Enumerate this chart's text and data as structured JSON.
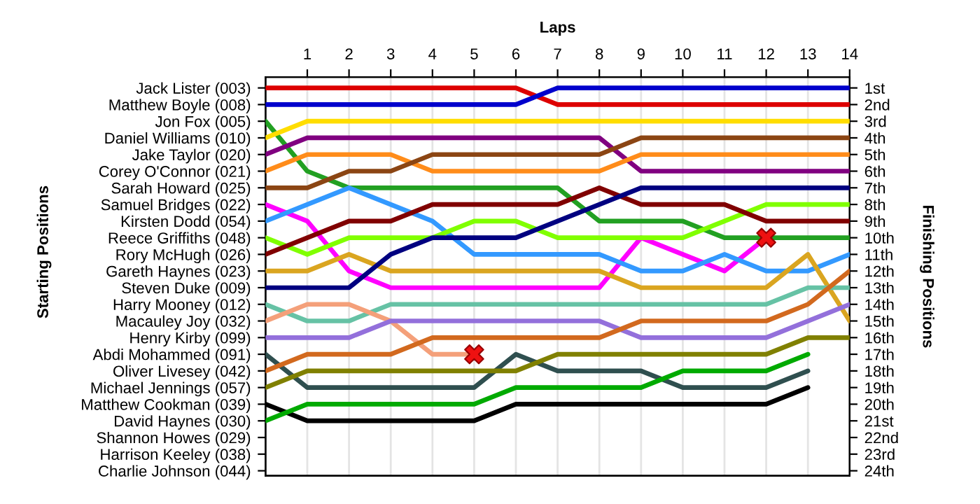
{
  "chart_data": {
    "type": "line",
    "xlabel": "Laps",
    "annotations": [
      "Starting Positions"
    ],
    "y2label": "Finishing Positions",
    "x": [
      0,
      1,
      2,
      3,
      4,
      5,
      6,
      7,
      8,
      9,
      10,
      11,
      12,
      13,
      14
    ],
    "xlim": [
      0,
      14
    ],
    "xticks": [
      1,
      2,
      3,
      4,
      5,
      6,
      7,
      8,
      9,
      10,
      11,
      12,
      13,
      14
    ],
    "y_categories": [
      "Jack Lister (003)",
      "Matthew Boyle (008)",
      "Jon Fox (005)",
      "Daniel Williams (010)",
      "Jake Taylor (020)",
      "Corey O'Connor (021)",
      "Sarah Howard (025)",
      "Samuel Bridges (022)",
      "Kirsten Dodd (054)",
      "Reece Griffiths (048)",
      "Rory McHugh (026)",
      "Gareth Haynes (023)",
      "Steven Duke (009)",
      "Harry Mooney (012)",
      "Macauley Joy (032)",
      "Henry Kirby (099)",
      "Abdi Mohammed (091)",
      "Oliver Livesey (042)",
      "Michael Jennings (057)",
      "Matthew Cookman (039)",
      "David Haynes (030)",
      "Shannon Howes (029)",
      "Harrison Keeley (038)",
      "Charlie Johnson (044)"
    ],
    "y2lim": [
      24.3,
      0.35
    ],
    "y2ticks": [
      {
        "value": 1,
        "label": "1st"
      },
      {
        "value": 2,
        "label": "2nd"
      },
      {
        "value": 3,
        "label": "3rd"
      },
      {
        "value": 4,
        "label": "4th"
      },
      {
        "value": 5,
        "label": "5th"
      },
      {
        "value": 6,
        "label": "6th"
      },
      {
        "value": 7,
        "label": "7th"
      },
      {
        "value": 8,
        "label": "8th"
      },
      {
        "value": 9,
        "label": "9th"
      },
      {
        "value": 10,
        "label": "10th"
      },
      {
        "value": 11,
        "label": "11th"
      },
      {
        "value": 12,
        "label": "12th"
      },
      {
        "value": 13,
        "label": "13th"
      },
      {
        "value": 14,
        "label": "14th"
      },
      {
        "value": 15,
        "label": "15th"
      },
      {
        "value": 16,
        "label": "16th"
      },
      {
        "value": 17,
        "label": "17th"
      },
      {
        "value": 18,
        "label": "18th"
      },
      {
        "value": 19,
        "label": "19th"
      },
      {
        "value": 20,
        "label": "20th"
      },
      {
        "value": 21,
        "label": "21st"
      },
      {
        "value": 22,
        "label": "22nd"
      },
      {
        "value": 23,
        "label": "23rd"
      },
      {
        "value": 24,
        "label": "24th"
      }
    ],
    "grid": "x",
    "line_style": "solid",
    "series": [
      {
        "axis": "y2",
        "color": "#dd0000",
        "values": [
          1,
          1,
          1,
          1,
          1,
          1,
          1,
          2,
          2,
          2,
          2,
          2,
          2,
          2,
          2
        ]
      },
      {
        "axis": "y2",
        "color": "#0000cc",
        "values": [
          2,
          2,
          2,
          2,
          2,
          2,
          2,
          1,
          1,
          1,
          1,
          1,
          1,
          1,
          1
        ]
      },
      {
        "axis": "y2",
        "color": "#22a022",
        "values": [
          3,
          6,
          7,
          7,
          7,
          7,
          7,
          7,
          9,
          9,
          9,
          10,
          10,
          10,
          10
        ]
      },
      {
        "axis": "y2",
        "color": "#ffdd00",
        "values": [
          4,
          3,
          3,
          3,
          3,
          3,
          3,
          3,
          3,
          3,
          3,
          3,
          3,
          3,
          3
        ]
      },
      {
        "axis": "y2",
        "color": "#800080",
        "values": [
          5,
          4,
          4,
          4,
          4,
          4,
          4,
          4,
          4,
          6,
          6,
          6,
          6,
          6,
          6
        ]
      },
      {
        "axis": "y2",
        "color": "#ff8c1a",
        "values": [
          6,
          5,
          5,
          5,
          6,
          6,
          6,
          6,
          6,
          5,
          5,
          5,
          5,
          5,
          5
        ]
      },
      {
        "axis": "y2",
        "color": "#8b4513",
        "values": [
          7,
          7,
          6,
          6,
          5,
          5,
          5,
          5,
          5,
          4,
          4,
          4,
          4,
          4,
          4
        ]
      },
      {
        "axis": "y2",
        "color": "#ff00ff",
        "values": [
          8,
          9,
          12,
          13,
          13,
          13,
          13,
          13,
          13,
          10,
          11,
          12,
          10,
          null,
          null
        ]
      },
      {
        "axis": "y2",
        "color": "#3399ff",
        "values": [
          9,
          8,
          7,
          8,
          9,
          11,
          11,
          11,
          11,
          12,
          12,
          11,
          12,
          12,
          11
        ]
      },
      {
        "axis": "y2",
        "color": "#80ff00",
        "values": [
          10,
          11,
          10,
          10,
          10,
          9,
          9,
          10,
          10,
          10,
          10,
          9,
          8,
          8,
          8
        ]
      },
      {
        "axis": "y2",
        "color": "#800000",
        "values": [
          11,
          10,
          9,
          9,
          8,
          8,
          8,
          8,
          7,
          8,
          8,
          8,
          9,
          9,
          9
        ]
      },
      {
        "axis": "y2",
        "color": "#daa520",
        "values": [
          12,
          12,
          11,
          12,
          12,
          12,
          12,
          12,
          12,
          13,
          13,
          13,
          13,
          11,
          15
        ]
      },
      {
        "axis": "y2",
        "color": "#000080",
        "values": [
          13,
          13,
          13,
          11,
          10,
          10,
          10,
          9,
          8,
          7,
          7,
          7,
          7,
          7,
          7
        ]
      },
      {
        "axis": "y2",
        "color": "#66c2a5",
        "values": [
          14,
          15,
          15,
          14,
          14,
          14,
          14,
          14,
          14,
          14,
          14,
          14,
          14,
          13,
          13
        ]
      },
      {
        "axis": "y2",
        "color": "#f4a07a",
        "values": [
          15,
          14,
          14,
          15,
          17,
          17,
          null,
          null,
          null,
          null,
          null,
          null,
          null,
          null,
          null
        ]
      },
      {
        "axis": "y2",
        "color": "#9370db",
        "values": [
          16,
          16,
          16,
          15,
          15,
          15,
          15,
          15,
          15,
          16,
          16,
          16,
          16,
          15,
          14
        ]
      },
      {
        "axis": "y2",
        "color": "#2f4f4f",
        "values": [
          17,
          19,
          19,
          19,
          19,
          19,
          17,
          18,
          18,
          18,
          19,
          19,
          19,
          18,
          null
        ]
      },
      {
        "axis": "y2",
        "color": "#d2691e",
        "values": [
          18,
          17,
          17,
          17,
          16,
          16,
          16,
          16,
          16,
          15,
          15,
          15,
          15,
          14,
          12
        ]
      },
      {
        "axis": "y2",
        "color": "#808000",
        "values": [
          19,
          18,
          18,
          18,
          18,
          18,
          18,
          17,
          17,
          17,
          17,
          17,
          17,
          16,
          16
        ]
      },
      {
        "axis": "y2",
        "color": "#000000",
        "values": [
          20,
          21,
          21,
          21,
          21,
          21,
          20,
          20,
          20,
          20,
          20,
          20,
          20,
          19,
          null
        ]
      },
      {
        "axis": "y2",
        "color": "#00aa00",
        "values": [
          21,
          20,
          20,
          20,
          20,
          20,
          19,
          19,
          19,
          19,
          18,
          18,
          18,
          17,
          null
        ]
      },
      {
        "axis": "y2",
        "type": "scatter",
        "marker": "cross",
        "color": "#ee1111",
        "x": [
          5,
          12
        ],
        "values": [
          17,
          10
        ]
      }
    ]
  }
}
